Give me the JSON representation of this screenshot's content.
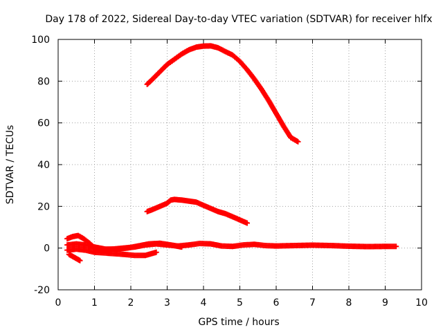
{
  "chart_data": {
    "type": "scatter",
    "title": "Day 178 of 2022, Sidereal Day-to-day VTEC variation (SDTVAR) for receiver hlfx",
    "xlabel": "GPS time / hours",
    "ylabel": "SDTVAR / TECUs",
    "xlim": [
      0,
      10
    ],
    "ylim": [
      -20,
      100
    ],
    "xticks": [
      0,
      1,
      2,
      3,
      4,
      5,
      6,
      7,
      8,
      9,
      10
    ],
    "yticks": [
      -20,
      0,
      20,
      40,
      60,
      80,
      100
    ],
    "grid": true,
    "marker": "+",
    "color": "#ff0000",
    "series": [
      {
        "name": "track-high",
        "x": [
          2.45,
          2.6,
          2.8,
          3.0,
          3.2,
          3.4,
          3.6,
          3.8,
          4.0,
          4.2,
          4.4,
          4.6,
          4.8,
          5.0,
          5.2,
          5.4,
          5.6,
          5.8,
          6.0,
          6.2,
          6.4,
          6.6
        ],
        "y": [
          78.5,
          81,
          84.5,
          88,
          90.5,
          93,
          95,
          96.3,
          96.8,
          96.9,
          96,
          94.2,
          92.5,
          89.5,
          85.5,
          81,
          76,
          70.5,
          64.5,
          58.5,
          53,
          51
        ]
      },
      {
        "name": "track-mid",
        "x": [
          2.45,
          2.6,
          2.8,
          3.0,
          3.1,
          3.2,
          3.4,
          3.6,
          3.8,
          4.0,
          4.2,
          4.4,
          4.6,
          4.8,
          5.0,
          5.2
        ],
        "y": [
          17.5,
          18.5,
          20,
          21.5,
          23,
          23.3,
          23,
          22.5,
          22,
          20.5,
          19,
          17.5,
          16.5,
          15,
          13.5,
          12
        ]
      },
      {
        "name": "track-a",
        "x": [
          0.25,
          0.4,
          0.55,
          0.7,
          0.85,
          1.0,
          1.2,
          1.5,
          1.8,
          2.1,
          2.4,
          2.7,
          3.0,
          3.3,
          3.6,
          3.9,
          4.2,
          4.5,
          4.8,
          5.1,
          5.4,
          5.7,
          6.0,
          6.5,
          7.0,
          7.5,
          8.0,
          8.5,
          9.0,
          9.3
        ],
        "y": [
          4.5,
          5.5,
          6,
          4.5,
          2.5,
          0,
          -1,
          -0.5,
          0,
          0.5,
          1.5,
          2,
          1.5,
          1,
          1.5,
          2.2,
          2,
          1,
          0.8,
          1.5,
          1.8,
          1.2,
          1,
          1.2,
          1.4,
          1.2,
          0.9,
          0.7,
          0.8,
          0.8
        ]
      },
      {
        "name": "track-b",
        "x": [
          0.25,
          0.5,
          0.75,
          1.0,
          1.3,
          1.6,
          1.9,
          2.2,
          2.5,
          2.8,
          3.1,
          3.4
        ],
        "y": [
          1.5,
          2,
          1.5,
          0.5,
          -0.5,
          -0.5,
          0,
          1,
          2,
          2.3,
          1.5,
          0.5
        ]
      },
      {
        "name": "track-c",
        "x": [
          0.25,
          0.5,
          0.75,
          1.0,
          1.4,
          1.8,
          2.1,
          2.4,
          2.7
        ],
        "y": [
          -1,
          -0.5,
          -1,
          -2,
          -2.5,
          -3,
          -3.5,
          -3.5,
          -2
        ]
      },
      {
        "name": "track-d",
        "x": [
          0.3,
          0.4,
          0.5,
          0.6
        ],
        "y": [
          -3,
          -4,
          -5,
          -6
        ]
      }
    ]
  }
}
